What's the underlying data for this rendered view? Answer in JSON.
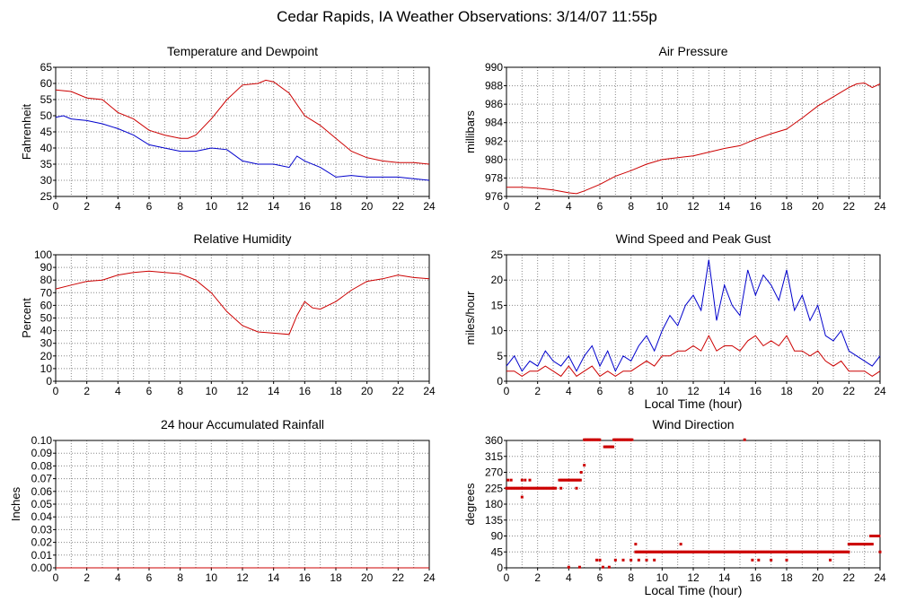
{
  "title": "Cedar Rapids, IA Weather Observations: 3/14/07 11:55p",
  "chart_data": [
    {
      "id": "temp",
      "type": "line",
      "title": "Temperature and Dewpoint",
      "xlabel": "",
      "ylabel": "Fahrenheit",
      "xlim": [
        0,
        24
      ],
      "ylim": [
        25,
        65
      ],
      "xticks": [
        0,
        2,
        4,
        6,
        8,
        10,
        12,
        14,
        16,
        18,
        20,
        22,
        24
      ],
      "yticks": [
        25,
        30,
        35,
        40,
        45,
        50,
        55,
        60,
        65
      ],
      "grid": true,
      "series": [
        {
          "color": "#cc0000",
          "x": [
            0,
            1,
            2,
            3,
            4,
            5,
            6,
            7,
            8,
            8.5,
            9,
            10,
            11,
            12,
            13,
            13.5,
            14,
            15,
            16,
            17,
            18,
            19,
            20,
            21,
            22,
            23,
            24
          ],
          "y": [
            58,
            57.5,
            55.5,
            55,
            51,
            49,
            45.5,
            44,
            43,
            43,
            44,
            49,
            55,
            59.5,
            60,
            61,
            60.5,
            57,
            50,
            47,
            43,
            39,
            37,
            36,
            35.5,
            35.5,
            35
          ]
        },
        {
          "color": "#0000cc",
          "x": [
            0,
            0.5,
            1,
            2,
            3,
            4,
            5,
            6,
            7,
            8,
            9,
            10,
            11,
            12,
            13,
            14,
            15,
            15.5,
            16,
            17,
            18,
            19,
            20,
            21,
            22,
            23,
            24
          ],
          "y": [
            49.5,
            50,
            49,
            48.5,
            47.5,
            46,
            44,
            41,
            40,
            39,
            39,
            40,
            39.5,
            36,
            35,
            35,
            34,
            37.5,
            36,
            34,
            31,
            31.5,
            31,
            31,
            31,
            30.5,
            30
          ]
        }
      ]
    },
    {
      "id": "pressure",
      "type": "line",
      "title": "Air Pressure",
      "xlabel": "",
      "ylabel": "millibars",
      "xlim": [
        0,
        24
      ],
      "ylim": [
        976,
        990
      ],
      "xticks": [
        0,
        2,
        4,
        6,
        8,
        10,
        12,
        14,
        16,
        18,
        20,
        22,
        24
      ],
      "yticks": [
        976,
        978,
        980,
        982,
        984,
        986,
        988,
        990
      ],
      "grid": true,
      "series": [
        {
          "color": "#cc0000",
          "x": [
            0,
            1,
            2,
            3,
            4,
            4.5,
            5,
            6,
            7,
            8,
            9,
            10,
            11,
            12,
            13,
            14,
            15,
            16,
            17,
            18,
            19,
            20,
            21,
            22,
            22.5,
            23,
            23.5,
            24
          ],
          "y": [
            977,
            977,
            976.9,
            976.7,
            976.4,
            976.3,
            976.6,
            977.3,
            978.2,
            978.8,
            979.5,
            980,
            980.2,
            980.4,
            980.8,
            981.2,
            981.5,
            982.2,
            982.8,
            983.3,
            984.5,
            985.8,
            986.8,
            987.8,
            988.2,
            988.3,
            987.8,
            988.2
          ]
        }
      ]
    },
    {
      "id": "humidity",
      "type": "line",
      "title": "Relative Humidity",
      "xlabel": "",
      "ylabel": "Percent",
      "xlim": [
        0,
        24
      ],
      "ylim": [
        0,
        100
      ],
      "xticks": [
        0,
        2,
        4,
        6,
        8,
        10,
        12,
        14,
        16,
        18,
        20,
        22,
        24
      ],
      "yticks": [
        0,
        10,
        20,
        30,
        40,
        50,
        60,
        70,
        80,
        90,
        100
      ],
      "grid": true,
      "series": [
        {
          "color": "#cc0000",
          "x": [
            0,
            1,
            2,
            3,
            4,
            5,
            6,
            7,
            8,
            9,
            10,
            11,
            12,
            13,
            14,
            15,
            15.5,
            16,
            16.5,
            17,
            18,
            19,
            20,
            21,
            22,
            23,
            24
          ],
          "y": [
            73,
            76,
            79,
            80,
            84,
            86,
            87,
            86,
            85,
            80,
            70,
            55,
            44,
            39,
            38,
            37,
            52,
            63,
            58,
            57,
            63,
            72,
            79,
            81,
            84,
            82,
            81
          ]
        }
      ]
    },
    {
      "id": "wind",
      "type": "line",
      "title": "Wind Speed and Peak Gust",
      "xlabel": "Local Time (hour)",
      "ylabel": "miles/hour",
      "xlim": [
        0,
        24
      ],
      "ylim": [
        0,
        25
      ],
      "xticks": [
        0,
        2,
        4,
        6,
        8,
        10,
        12,
        14,
        16,
        18,
        20,
        22,
        24
      ],
      "yticks": [
        0,
        5,
        10,
        15,
        20,
        25
      ],
      "grid": true,
      "series": [
        {
          "color": "#0000cc",
          "x": [
            0,
            0.5,
            1,
            1.5,
            2,
            2.5,
            3,
            3.5,
            4,
            4.5,
            5,
            5.5,
            6,
            6.5,
            7,
            7.5,
            8,
            8.5,
            9,
            9.5,
            10,
            10.5,
            11,
            11.5,
            12,
            12.5,
            13,
            13.5,
            14,
            14.5,
            15,
            15.5,
            16,
            16.5,
            17,
            17.5,
            18,
            18.5,
            19,
            19.5,
            20,
            20.5,
            21,
            21.5,
            22,
            22.5,
            23,
            23.5,
            24
          ],
          "y": [
            3,
            5,
            2,
            4,
            3,
            6,
            4,
            3,
            5,
            2,
            5,
            7,
            3,
            6,
            2,
            5,
            4,
            7,
            9,
            6,
            10,
            13,
            11,
            15,
            17,
            14,
            24,
            12,
            19,
            15,
            13,
            22,
            17,
            21,
            19,
            16,
            22,
            14,
            17,
            12,
            15,
            9,
            8,
            10,
            6,
            5,
            4,
            3,
            5
          ]
        },
        {
          "color": "#cc0000",
          "x": [
            0,
            0.5,
            1,
            1.5,
            2,
            2.5,
            3,
            3.5,
            4,
            4.5,
            5,
            5.5,
            6,
            6.5,
            7,
            7.5,
            8,
            8.5,
            9,
            9.5,
            10,
            10.5,
            11,
            11.5,
            12,
            12.5,
            13,
            13.5,
            14,
            14.5,
            15,
            15.5,
            16,
            16.5,
            17,
            17.5,
            18,
            18.5,
            19,
            19.5,
            20,
            20.5,
            21,
            21.5,
            22,
            22.5,
            23,
            23.5,
            24
          ],
          "y": [
            2,
            2,
            1,
            2,
            2,
            3,
            2,
            1,
            3,
            1,
            2,
            3,
            1,
            2,
            1,
            2,
            2,
            3,
            4,
            3,
            5,
            5,
            6,
            6,
            7,
            6,
            9,
            6,
            7,
            7,
            6,
            8,
            9,
            7,
            8,
            7,
            9,
            6,
            6,
            5,
            6,
            4,
            3,
            4,
            2,
            2,
            2,
            1,
            2
          ]
        }
      ]
    },
    {
      "id": "rain",
      "type": "line",
      "title": "24 hour Accumulated Rainfall",
      "xlabel": "",
      "ylabel": "Inches",
      "xlim": [
        0,
        24
      ],
      "ylim": [
        0,
        0.1
      ],
      "xticks": [
        0,
        2,
        4,
        6,
        8,
        10,
        12,
        14,
        16,
        18,
        20,
        22,
        24
      ],
      "yticks": [
        "0.00",
        "0.01",
        "0.02",
        "0.03",
        "0.04",
        "0.05",
        "0.06",
        "0.07",
        "0.08",
        "0.09",
        "0.10"
      ],
      "grid": true,
      "series": [
        {
          "color": "#cc0000",
          "x": [
            0,
            24
          ],
          "y": [
            0,
            0
          ]
        }
      ]
    },
    {
      "id": "direction",
      "type": "scatter",
      "title": "Wind Direction",
      "xlabel": "Local Time (hour)",
      "ylabel": "degrees",
      "xlim": [
        0,
        24
      ],
      "ylim": [
        0,
        360
      ],
      "xticks": [
        0,
        2,
        4,
        6,
        8,
        10,
        12,
        14,
        16,
        18,
        20,
        22,
        24
      ],
      "yticks": [
        0,
        45,
        90,
        135,
        180,
        225,
        270,
        315,
        360
      ],
      "grid": true,
      "series": [
        {
          "color": "#cc0000",
          "marker": "square",
          "segments": [
            {
              "x0": 0,
              "x1": 3.2,
              "y": 225
            },
            {
              "x0": 3.4,
              "x1": 4.8,
              "y": 248
            },
            {
              "x0": 5.0,
              "x1": 6.0,
              "y": 362
            },
            {
              "x0": 6.3,
              "x1": 6.9,
              "y": 342
            },
            {
              "x0": 6.9,
              "x1": 8.1,
              "y": 362
            },
            {
              "x0": 8.3,
              "x1": 22.0,
              "y": 45
            },
            {
              "x0": 22.0,
              "x1": 23.4,
              "y": 67
            },
            {
              "x0": 23.4,
              "x1": 24.0,
              "y": 90
            }
          ],
          "points": [
            [
              0.1,
              248
            ],
            [
              0.3,
              248
            ],
            [
              1.0,
              248
            ],
            [
              1.2,
              248
            ],
            [
              1.5,
              248
            ],
            [
              1.0,
              200
            ],
            [
              3.5,
              225
            ],
            [
              4.0,
              2
            ],
            [
              4.5,
              225
            ],
            [
              4.8,
              270
            ],
            [
              5.0,
              290
            ],
            [
              4.7,
              2
            ],
            [
              5.8,
              22
            ],
            [
              6.0,
              22
            ],
            [
              6.2,
              2
            ],
            [
              6.6,
              2
            ],
            [
              7.0,
              22
            ],
            [
              7.5,
              22
            ],
            [
              8.0,
              22
            ],
            [
              8.3,
              67
            ],
            [
              8.5,
              22
            ],
            [
              9.0,
              22
            ],
            [
              9.5,
              22
            ],
            [
              11.2,
              67
            ],
            [
              15.3,
              362
            ],
            [
              15.8,
              22
            ],
            [
              16.2,
              22
            ],
            [
              17.0,
              22
            ],
            [
              18.0,
              22
            ],
            [
              20.8,
              22
            ],
            [
              23.5,
              67
            ],
            [
              23.8,
              90
            ],
            [
              24.0,
              45
            ]
          ]
        }
      ]
    }
  ]
}
